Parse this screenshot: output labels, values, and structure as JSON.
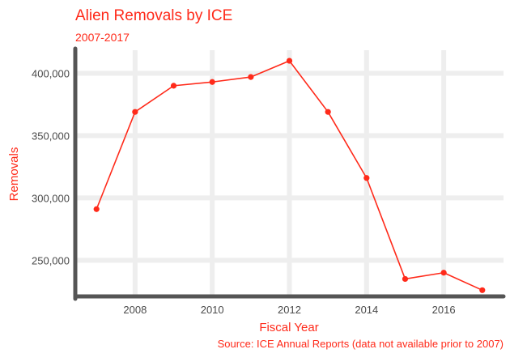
{
  "chart_data": {
    "type": "line",
    "title": "Alien Removals by ICE",
    "subtitle": "2007-2017",
    "xlabel": "Fiscal Year",
    "ylabel": "Removals",
    "caption": "Source: ICE Annual Reports (data not available prior to 2007)",
    "x": [
      2007,
      2008,
      2009,
      2010,
      2011,
      2012,
      2013,
      2014,
      2015,
      2016,
      2017
    ],
    "series": [
      {
        "values": [
          291000,
          369000,
          390000,
          393000,
          397000,
          410000,
          369000,
          316000,
          235000,
          240000,
          226000
        ]
      }
    ],
    "xlim": [
      2006.45,
      2017.55
    ],
    "ylim": [
      221000,
      418500
    ],
    "x_ticks": [
      2008,
      2010,
      2012,
      2014,
      2016
    ],
    "x_tick_labels": [
      "2008",
      "2010",
      "2012",
      "2014",
      "2016"
    ],
    "y_ticks": [
      250000,
      300000,
      350000,
      400000
    ],
    "y_tick_labels": [
      "250,000",
      "300,000",
      "350,000",
      "400,000"
    ],
    "grid": true,
    "legend": "none",
    "colors": {
      "accent": "#ff2a1a",
      "line": "#ff2a1a",
      "grid": "#eeeeee",
      "axis": "#555555",
      "tick_text": "#4a4a4a"
    }
  }
}
